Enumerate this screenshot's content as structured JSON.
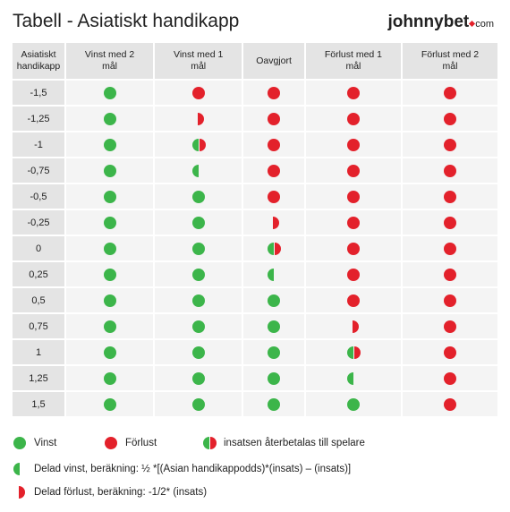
{
  "header": {
    "title": "Tabell - Asiatiskt handikapp",
    "logo": "johnnybet",
    "logo_suffix": "com"
  },
  "table": {
    "columns": [
      "Asiatiskt handikapp",
      "Vinst med 2 mål",
      "Vinst med 1 mål",
      "Oavgjort",
      "Förlust med 1 mål",
      "Förlust med 2 mål"
    ],
    "row_labels": [
      "-1,5",
      "-1,25",
      "-1",
      "-0,75",
      "-0,5",
      "-0,25",
      "0",
      "0,25",
      "0,5",
      "0,75",
      "1",
      "1,25",
      "1,5"
    ]
  },
  "legend": {
    "win": "Vinst",
    "loss": "Förlust",
    "push": "insatsen återbetalas till spelare",
    "half_win": "Delad vinst, beräkning: ½ *[(Asian handikappodds)*(insats) – (insats)]",
    "half_loss": "Delad förlust, beräkning: -1/2* (insats)"
  }
}
